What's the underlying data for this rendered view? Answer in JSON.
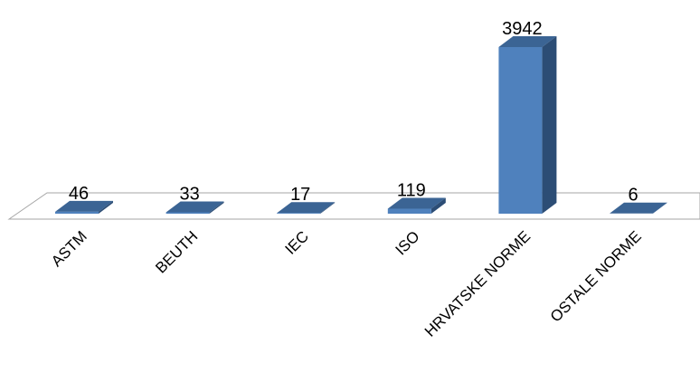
{
  "chart_data": {
    "type": "bar",
    "style": "3d-column",
    "categories": [
      "ASTM",
      "BEUTH",
      "IEC",
      "ISO",
      "HRVATSKE NORME",
      "OSTALE NORME"
    ],
    "values": [
      46,
      33,
      17,
      119,
      3942,
      6
    ],
    "data_labels": [
      "46",
      "33",
      "17",
      "119",
      "3942",
      "6"
    ],
    "title": "",
    "xlabel": "",
    "ylabel": "",
    "ylim": [
      0,
      3942
    ],
    "grid": false,
    "legend": "none",
    "colors": {
      "bar_front": "#4f81bd",
      "bar_side": "#2c4d75",
      "bar_top": "#3b6494",
      "floor_stroke": "#a6a6a6"
    }
  }
}
